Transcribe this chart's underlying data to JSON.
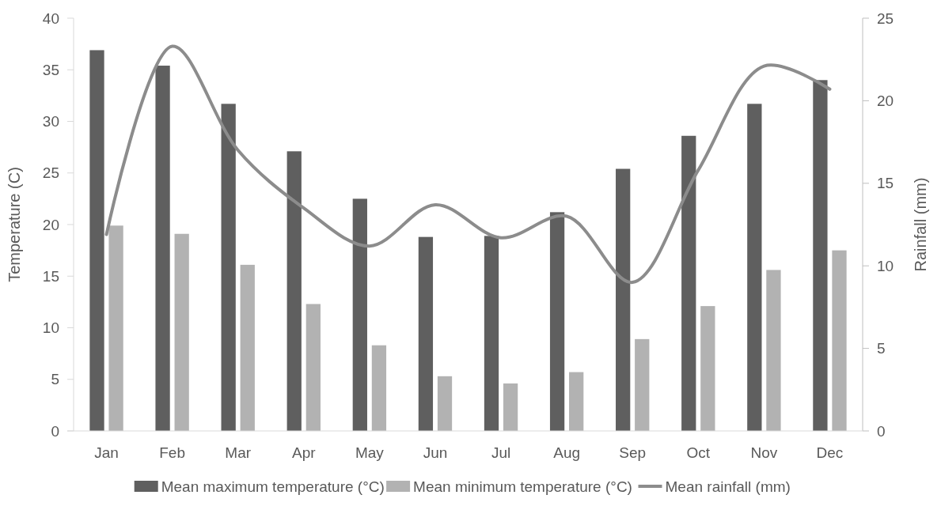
{
  "chart_data": {
    "type": "bar",
    "categories": [
      "Jan",
      "Feb",
      "Mar",
      "Apr",
      "May",
      "Jun",
      "Jul",
      "Aug",
      "Sep",
      "Oct",
      "Nov",
      "Dec"
    ],
    "ylabel": "Temperature (C)",
    "y2label": "Rainfall (mm)",
    "ylim": [
      0,
      40
    ],
    "yticks": [
      0,
      5,
      10,
      15,
      20,
      25,
      30,
      35,
      40
    ],
    "y2lim": [
      0,
      25
    ],
    "y2ticks": [
      0,
      5,
      10,
      15,
      20,
      25
    ],
    "legend": "bottom",
    "grid": false,
    "series": [
      {
        "name": "Mean maximum temperature (°C)",
        "color": "#5f5f5f",
        "values": [
          36.9,
          35.4,
          31.7,
          27.1,
          22.5,
          18.8,
          18.9,
          21.2,
          25.4,
          28.6,
          31.7,
          34.0
        ]
      },
      {
        "name": "Mean minimum temperature (°C)",
        "color": "#b2b2b2",
        "values": [
          19.9,
          19.1,
          16.1,
          12.3,
          8.3,
          5.3,
          4.6,
          5.7,
          8.9,
          12.1,
          15.6,
          17.5
        ]
      },
      {
        "name": "Mean rainfall (mm)",
        "type": "line",
        "axis": "y2",
        "color": "#8c8c8c",
        "values": [
          11.9,
          23.3,
          17.0,
          13.5,
          11.2,
          13.7,
          11.7,
          13.0,
          9.0,
          15.8,
          22.1,
          20.7
        ]
      }
    ]
  }
}
